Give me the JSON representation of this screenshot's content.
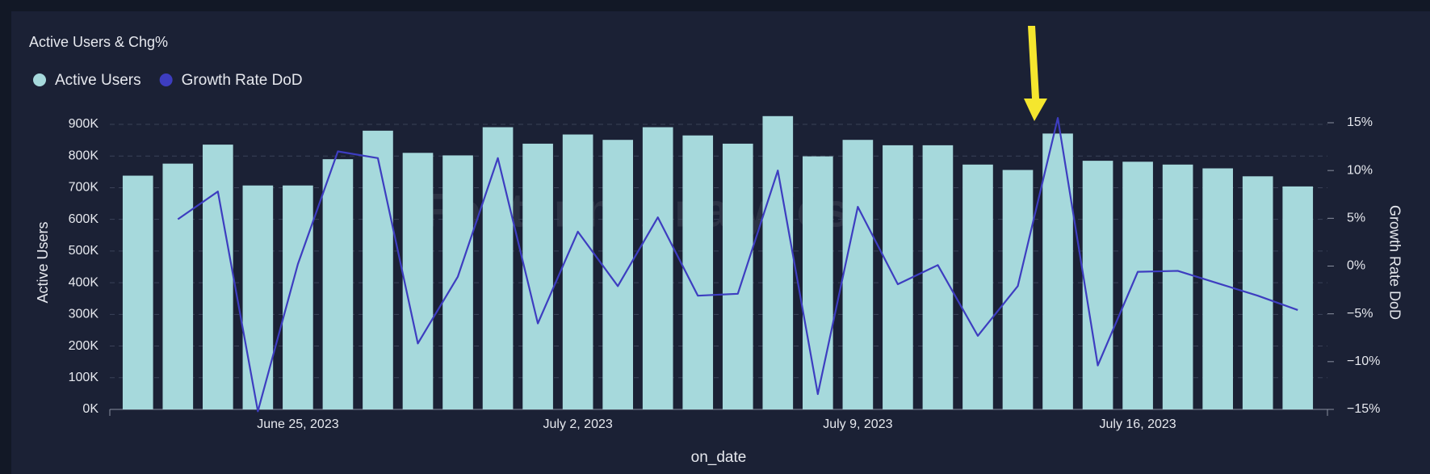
{
  "chart_data": {
    "type": "bar-line",
    "title": "Active Users & Chg%",
    "watermark": "Footprint Analytics",
    "x_label": "on_date",
    "y_label": "Active Users",
    "y2_label": "Growth Rate DoD",
    "x": [
      "2023-06-21",
      "2023-06-22",
      "2023-06-23",
      "2023-06-24",
      "2023-06-25",
      "2023-06-26",
      "2023-06-27",
      "2023-06-28",
      "2023-06-29",
      "2023-06-30",
      "2023-07-01",
      "2023-07-02",
      "2023-07-03",
      "2023-07-04",
      "2023-07-05",
      "2023-07-06",
      "2023-07-07",
      "2023-07-08",
      "2023-07-09",
      "2023-07-10",
      "2023-07-11",
      "2023-07-12",
      "2023-07-13",
      "2023-07-14",
      "2023-07-15",
      "2023-07-16",
      "2023-07-17",
      "2023-07-18",
      "2023-07-19",
      "2023-07-20"
    ],
    "xticks": [
      {
        "value": "2023-06-25",
        "label": "June 25, 2023"
      },
      {
        "value": "2023-07-02",
        "label": "July 2, 2023"
      },
      {
        "value": "2023-07-09",
        "label": "July 9, 2023"
      },
      {
        "value": "2023-07-16",
        "label": "July 16, 2023"
      }
    ],
    "series": [
      {
        "name": "Active Users",
        "type": "bar",
        "color": "#a6d9dc",
        "values": [
          738000,
          776000,
          836000,
          707000,
          707000,
          790000,
          880000,
          810000,
          802000,
          891000,
          839000,
          868000,
          851000,
          891000,
          865000,
          839000,
          926000,
          799000,
          851000,
          834000,
          834000,
          773000,
          756000,
          871000,
          785000,
          782000,
          773000,
          761000,
          736000,
          704000
        ]
      },
      {
        "name": "Growth Rate DoD",
        "type": "line",
        "axis": "y2",
        "color": "#3d3dc0",
        "values": [
          null,
          4.9,
          7.8,
          -15.2,
          0.2,
          12.0,
          11.3,
          -8.1,
          -1.1,
          11.3,
          -6.0,
          3.6,
          -2.1,
          5.1,
          -3.1,
          -2.9,
          10.0,
          -13.4,
          6.2,
          -1.9,
          0.1,
          -7.3,
          -2.1,
          15.5,
          -10.4,
          -0.6,
          -0.5,
          -1.8,
          -3.1,
          -4.6
        ]
      }
    ],
    "ylim": [
      0,
      900000
    ],
    "yticks": [
      {
        "value": 0,
        "label": "0K"
      },
      {
        "value": 100000,
        "label": "100K"
      },
      {
        "value": 200000,
        "label": "200K"
      },
      {
        "value": 300000,
        "label": "300K"
      },
      {
        "value": 400000,
        "label": "400K"
      },
      {
        "value": 500000,
        "label": "500K"
      },
      {
        "value": 600000,
        "label": "600K"
      },
      {
        "value": 700000,
        "label": "700K"
      },
      {
        "value": 800000,
        "label": "800K"
      },
      {
        "value": 900000,
        "label": "900K"
      }
    ],
    "y2lim": [
      -15,
      15
    ],
    "y2ticks": [
      {
        "value": -15,
        "label": "−15%"
      },
      {
        "value": -10,
        "label": "−10%"
      },
      {
        "value": -5,
        "label": "−5%"
      },
      {
        "value": 0,
        "label": "0%"
      },
      {
        "value": 5,
        "label": "5%"
      },
      {
        "value": 10,
        "label": "10%"
      },
      {
        "value": 15,
        "label": "15%"
      }
    ],
    "grid": true,
    "legend": "top-left"
  }
}
